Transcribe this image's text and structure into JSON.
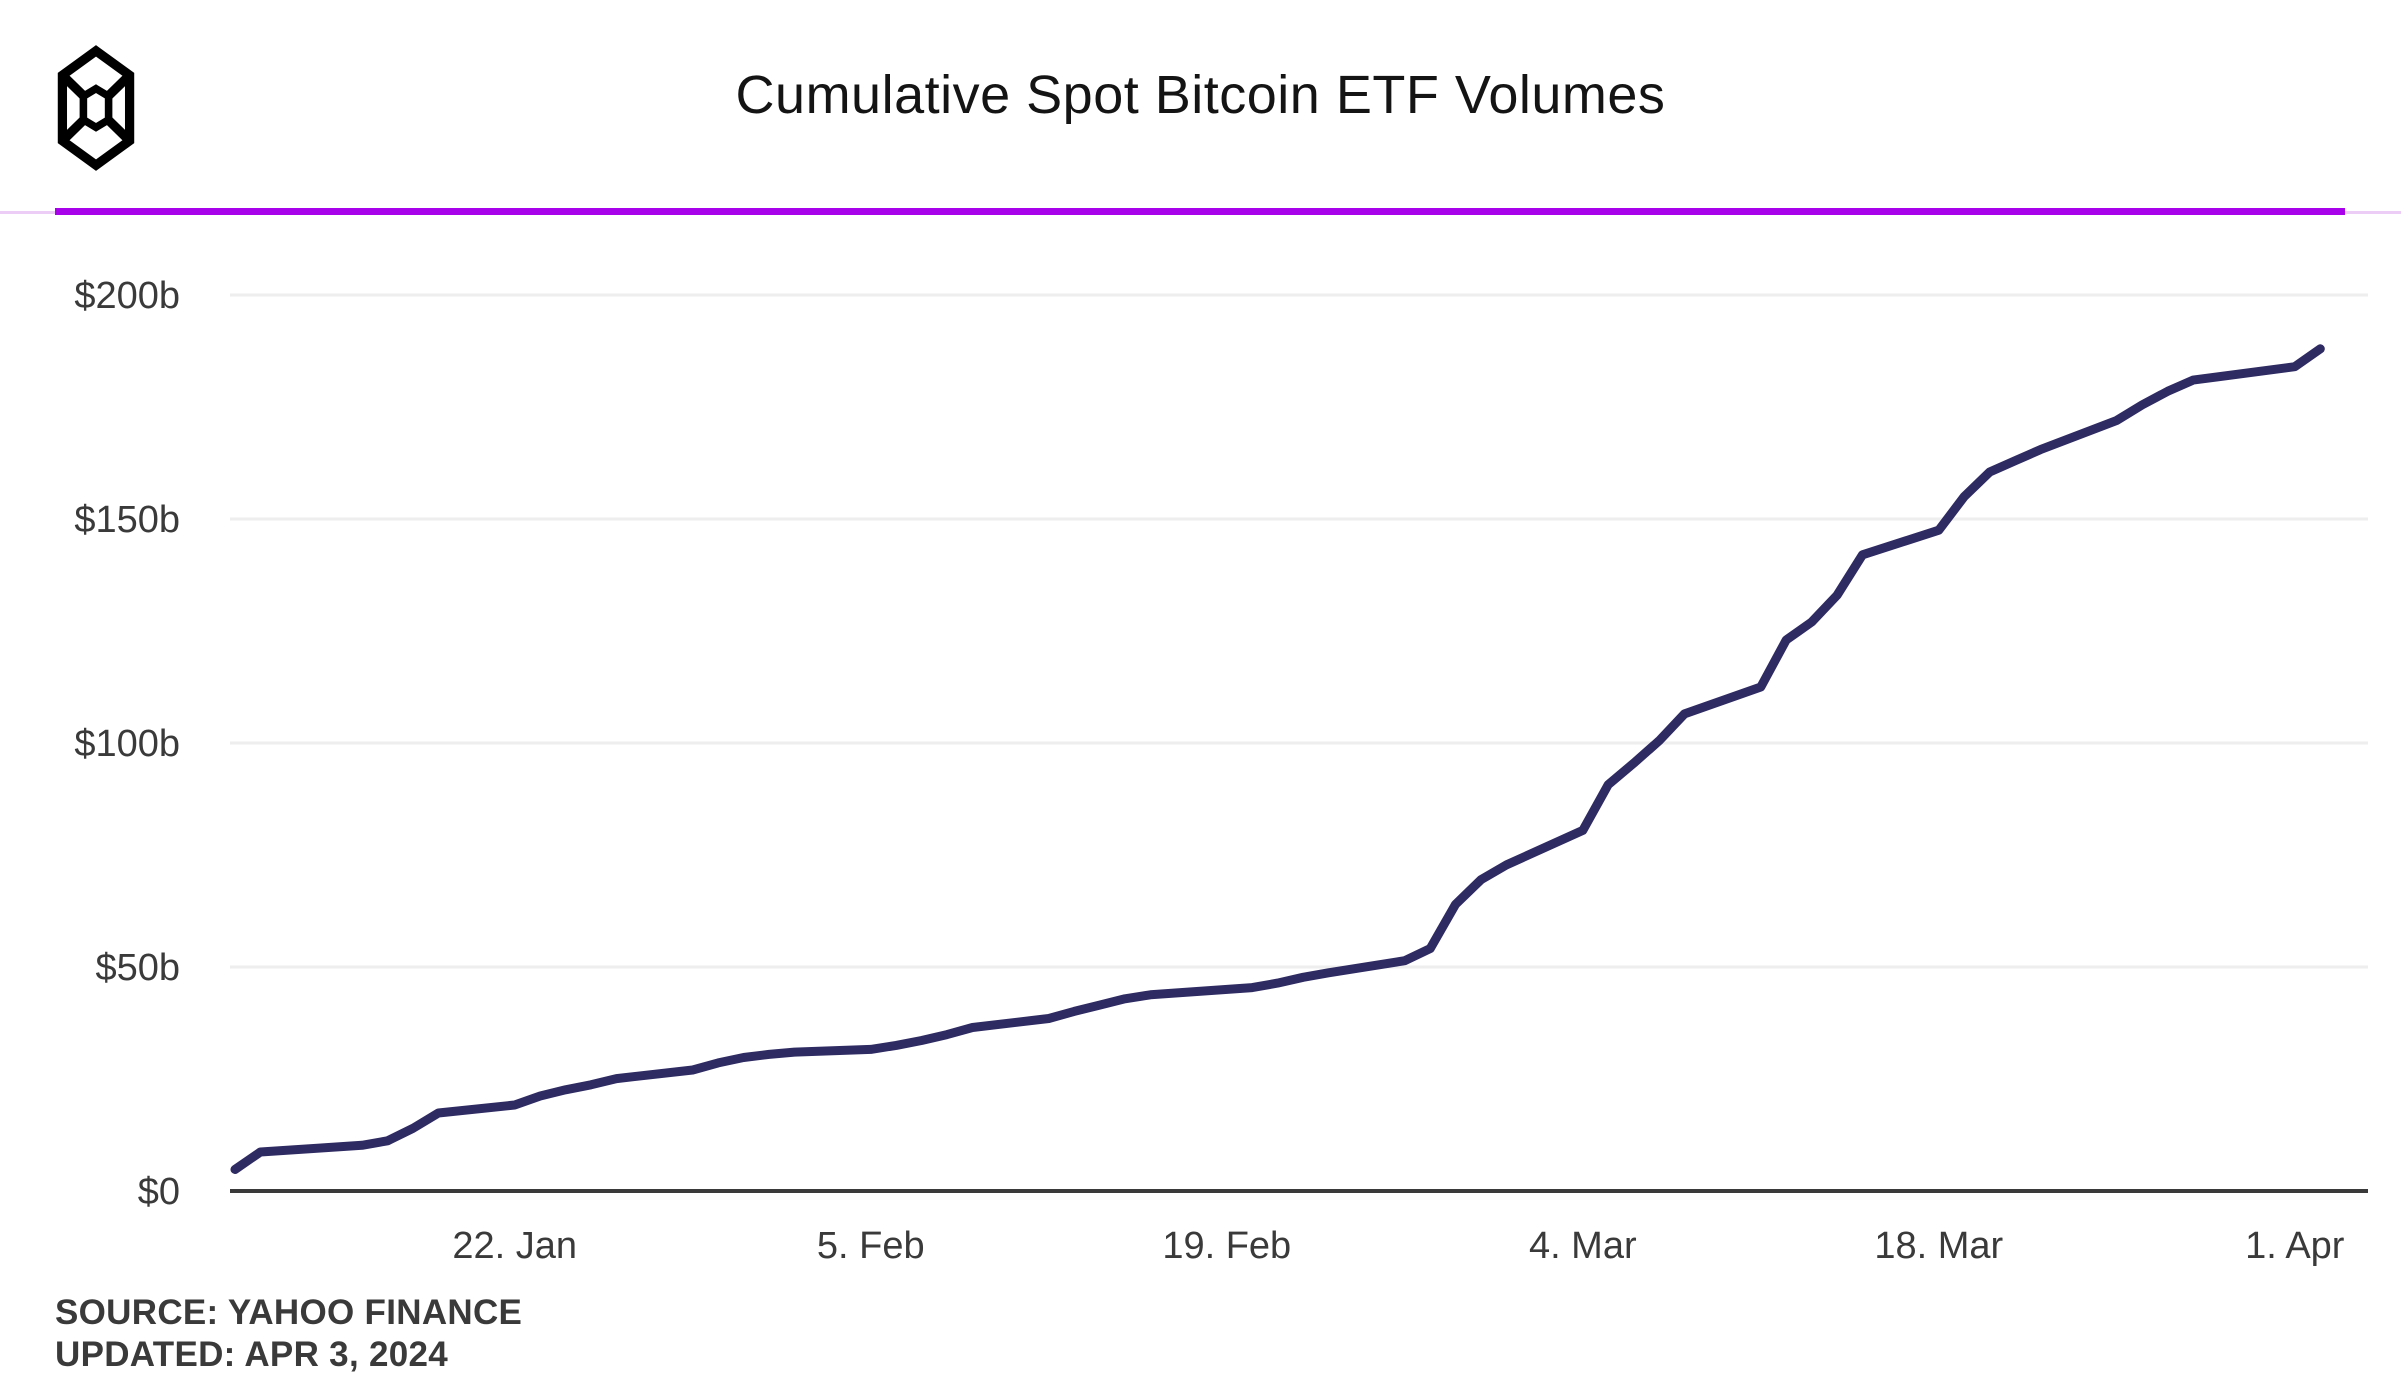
{
  "header": {
    "title": "Cumulative Spot Bitcoin ETF Volumes",
    "logo_icon": "block-cube-logo"
  },
  "footer": {
    "source": "SOURCE: YAHOO FINANCE",
    "updated": "UPDATED: APR 3, 2024"
  },
  "colors": {
    "line": "#2e2a62",
    "divider_thick": "#a802ea",
    "divider_light": "#eccdf6",
    "grid": "#eeeeee",
    "axis": "#3a3a3a",
    "tick_label": "#3a3a3a",
    "title_text": "#141414",
    "source_text": "#3a3a3a"
  },
  "chart_data": {
    "type": "line",
    "title": "Cumulative Spot Bitcoin ETF Volumes",
    "series_name": "Cumulative spot Bitcoin ETF volume (billions USD)",
    "unit": "$b",
    "ylim": [
      0,
      215
    ],
    "grid": "horizontal",
    "legend": "none",
    "y_ticks": [
      {
        "label": "$200b",
        "value": 200
      },
      {
        "label": "$150b",
        "value": 150
      },
      {
        "label": "$100b",
        "value": 100
      },
      {
        "label": "$50b",
        "value": 50
      },
      {
        "label": "$0",
        "value": 0
      }
    ],
    "x_ticks": [
      {
        "label": "22. Jan",
        "date": "Jan 22"
      },
      {
        "label": "5. Feb",
        "date": "Feb 5"
      },
      {
        "label": "19. Feb",
        "date": "Feb 19"
      },
      {
        "label": "4. Mar",
        "date": "Mar 4"
      },
      {
        "label": "18. Mar",
        "date": "Mar 18"
      },
      {
        "label": "1. Apr",
        "date": "Apr 1"
      }
    ],
    "x": [
      "Jan 11",
      "Jan 12",
      "Jan 16",
      "Jan 17",
      "Jan 18",
      "Jan 19",
      "Jan 22",
      "Jan 23",
      "Jan 24",
      "Jan 25",
      "Jan 26",
      "Jan 29",
      "Jan 30",
      "Jan 31",
      "Feb 1",
      "Feb 2",
      "Feb 5",
      "Feb 6",
      "Feb 7",
      "Feb 8",
      "Feb 9",
      "Feb 12",
      "Feb 13",
      "Feb 14",
      "Feb 15",
      "Feb 16",
      "Feb 20",
      "Feb 21",
      "Feb 22",
      "Feb 23",
      "Feb 26",
      "Feb 27",
      "Feb 28",
      "Feb 29",
      "Mar 1",
      "Mar 4",
      "Mar 5",
      "Mar 6",
      "Mar 7",
      "Mar 8",
      "Mar 11",
      "Mar 12",
      "Mar 13",
      "Mar 14",
      "Mar 15",
      "Mar 18",
      "Mar 19",
      "Mar 20",
      "Mar 21",
      "Mar 22",
      "Mar 25",
      "Mar 26",
      "Mar 27",
      "Mar 28",
      "Apr 1",
      "Apr 2"
    ],
    "values": [
      4.8,
      8.7,
      10.2,
      11.2,
      14.0,
      17.4,
      19.2,
      21.2,
      22.6,
      23.7,
      25.1,
      27.0,
      28.6,
      29.8,
      30.5,
      31.0,
      31.6,
      32.5,
      33.6,
      34.9,
      36.5,
      38.5,
      40.1,
      41.5,
      42.9,
      43.8,
      45.4,
      46.4,
      47.7,
      48.7,
      51.4,
      54.1,
      64.0,
      69.5,
      72.8,
      80.5,
      90.7,
      95.5,
      100.5,
      106.5,
      112.5,
      123.0,
      127.0,
      133.0,
      142.0,
      147.5,
      155.0,
      160.5,
      163.0,
      165.5,
      172.0,
      175.5,
      178.5,
      181.0,
      184.0,
      188.0
    ]
  }
}
